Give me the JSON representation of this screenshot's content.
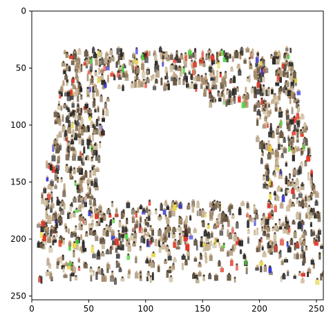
{
  "figure": {
    "image_size": [
      256,
      256
    ],
    "x_axis": {
      "range": [
        0,
        256
      ],
      "ticks": [
        0,
        50,
        100,
        150,
        200,
        250
      ],
      "labels": [
        "0",
        "50",
        "100",
        "150",
        "200",
        "250"
      ]
    },
    "y_axis": {
      "range": [
        0,
        256
      ],
      "inverted": true,
      "ticks": [
        0,
        50,
        100,
        150,
        200,
        250
      ],
      "labels": [
        "0",
        "50",
        "100",
        "150",
        "200",
        "250"
      ]
    },
    "content": {
      "description_semantic": "crowd-of-people-forming-square-frame",
      "background_color": "#ffffff",
      "crowd_palette": [
        "#2b2b2b",
        "#6b5a45",
        "#a48b6a",
        "#c9b99a",
        "#e23a2a",
        "#4bd43b",
        "#3a3ad4",
        "#e8d84a"
      ]
    }
  }
}
